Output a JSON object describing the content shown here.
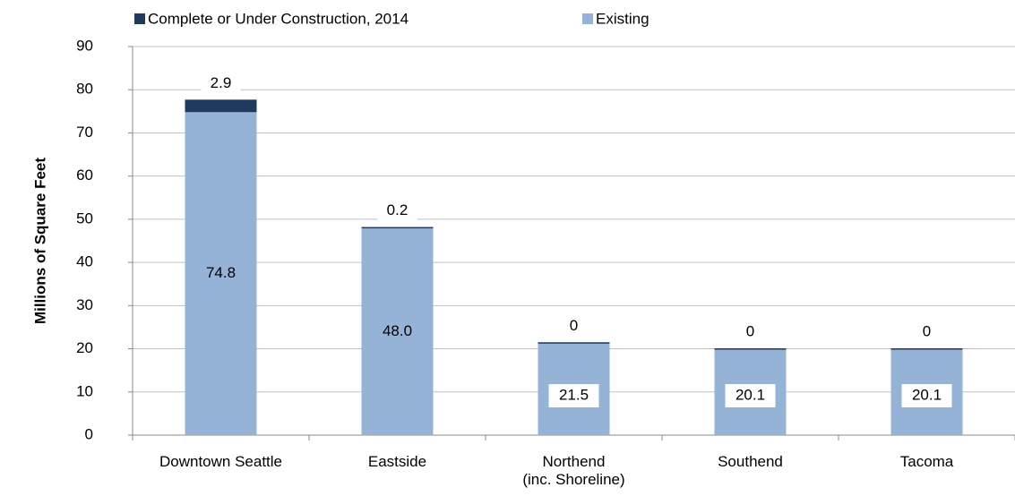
{
  "chart_data": {
    "type": "stacked_bar",
    "y_label": "Millions of Square Feet",
    "categories": [
      "Downtown Seattle",
      "Eastside",
      "Northend\n(inc. Shoreline)",
      "Southend",
      "Tacoma"
    ],
    "series": [
      {
        "name": "Existing",
        "color": "#95b3d7",
        "values": [
          74.8,
          48.0,
          21.5,
          20.1,
          20.1
        ],
        "value_labels": [
          "74.8",
          "48.0",
          "21.5",
          "20.1",
          "20.1"
        ]
      },
      {
        "name": "Complete or Under Construction, 2014",
        "color": "#1f3a5f",
        "values": [
          2.9,
          0.2,
          0,
          0,
          0
        ]
      }
    ],
    "ylim": [
      0,
      90
    ],
    "yticks": [
      0,
      10,
      20,
      30,
      40,
      50,
      60,
      70,
      80,
      90
    ],
    "grid": true,
    "legend": "top"
  }
}
